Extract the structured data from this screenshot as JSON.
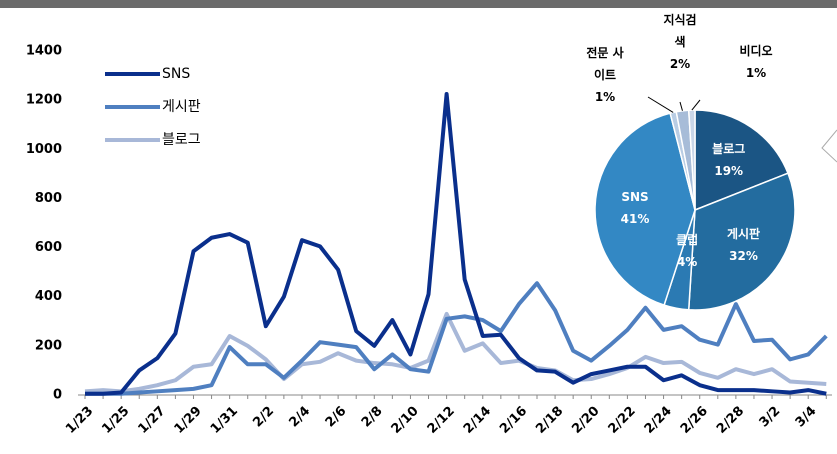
{
  "chart_data": [
    {
      "type": "line",
      "categories": [
        "1/23",
        null,
        "1/25",
        null,
        "1/27",
        null,
        "1/29",
        null,
        "1/31",
        null,
        "2/2",
        null,
        "2/4",
        null,
        "2/6",
        null,
        "2/8",
        null,
        "2/10",
        null,
        "2/12",
        null,
        "2/14",
        null,
        "2/16",
        null,
        "2/18",
        null,
        "2/20",
        null,
        "2/22",
        null,
        "2/24",
        null,
        "2/26",
        null,
        "2/28",
        null,
        "3/2",
        null,
        "3/4",
        null
      ],
      "series": [
        {
          "name": "SNS",
          "color": "#0a2f8c",
          "values": [
            5,
            5,
            10,
            100,
            150,
            250,
            585,
            640,
            655,
            620,
            280,
            400,
            630,
            605,
            510,
            260,
            200,
            305,
            165,
            410,
            1225,
            470,
            240,
            245,
            150,
            100,
            95,
            50,
            85,
            100,
            115,
            115,
            60,
            80,
            40,
            20,
            20,
            20,
            15,
            10,
            20,
            5
          ]
        },
        {
          "name": "게시판",
          "color": "#4f7fc0",
          "values": [
            5,
            5,
            5,
            10,
            15,
            20,
            25,
            40,
            195,
            125,
            125,
            70,
            140,
            215,
            205,
            195,
            105,
            165,
            105,
            95,
            310,
            320,
            305,
            260,
            370,
            455,
            345,
            180,
            140,
            200,
            265,
            355,
            265,
            280,
            225,
            205,
            370,
            220,
            225,
            145,
            165,
            240
          ]
        },
        {
          "name": "블로그",
          "color": "#a8b8d8",
          "values": [
            15,
            20,
            15,
            25,
            40,
            60,
            115,
            125,
            240,
            200,
            145,
            65,
            125,
            135,
            170,
            140,
            130,
            125,
            110,
            140,
            330,
            180,
            210,
            130,
            140,
            110,
            100,
            60,
            65,
            85,
            110,
            155,
            130,
            135,
            90,
            70,
            105,
            85,
            105,
            55,
            50,
            45
          ]
        }
      ],
      "ylim": [
        0,
        1400
      ],
      "yticks": [
        0,
        200,
        400,
        600,
        800,
        1000,
        1200,
        1400
      ],
      "legend": "upper left"
    },
    {
      "type": "pie",
      "categories": [
        "블로그",
        "게시판",
        "클럽",
        "SNS",
        "전문 사이트",
        "지식검색",
        "비디오"
      ],
      "values": [
        19,
        32,
        4,
        41,
        1,
        2,
        1
      ],
      "value_labels": [
        "19%",
        "32%",
        "4%",
        "41%",
        "1%",
        "2%",
        "1%"
      ],
      "colors": [
        "#1b5584",
        "#236c9f",
        "#2b7ab3",
        "#3388c4",
        "#b9cde4",
        "#a7bcd8",
        "#c9d6e8"
      ]
    }
  ]
}
